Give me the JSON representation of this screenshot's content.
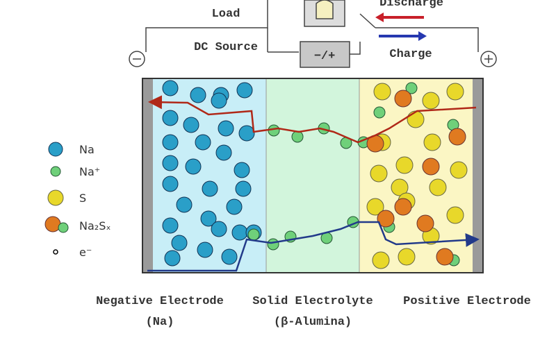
{
  "circuit": {
    "load": "Load",
    "dc_source": "DC Source",
    "source_symbol": "−/+",
    "discharge": "Discharge",
    "charge": "Charge"
  },
  "legend": [
    {
      "label": "Na"
    },
    {
      "label": "Na⁺"
    },
    {
      "label": "S"
    },
    {
      "label": "Na₂Sₓ"
    },
    {
      "label": "e⁻"
    }
  ],
  "regions": [
    {
      "title": "Negative Electrode",
      "subtitle": "(Na)"
    },
    {
      "title": "Solid Electrolyte",
      "subtitle": "(β-Alumina)"
    },
    {
      "title": "Positive Electrode"
    }
  ]
}
